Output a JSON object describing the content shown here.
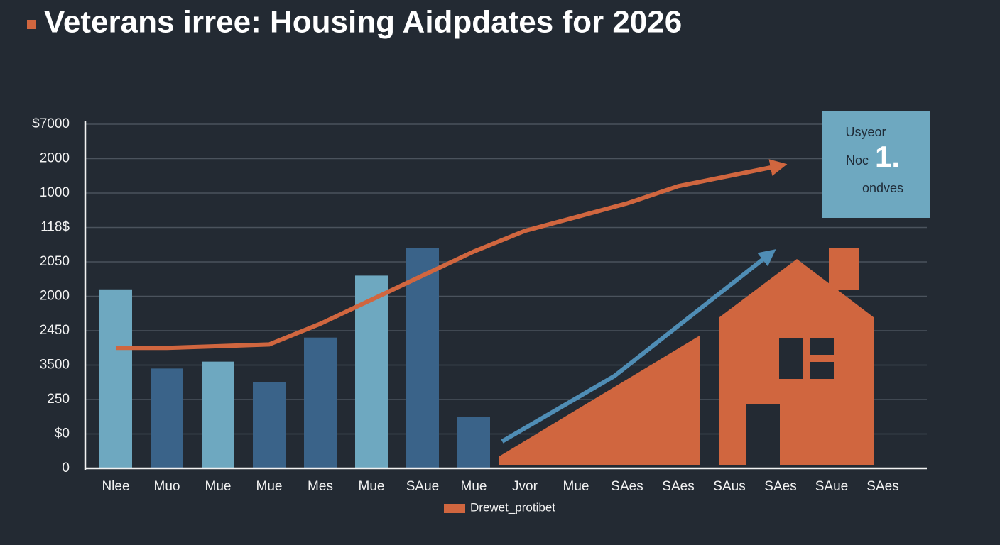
{
  "chart_data": {
    "type": "bar",
    "title": "Veterans irree: Housing Aidpdates for 2026",
    "categories": [
      "Nlee",
      "Muo",
      "Mue",
      "Mue",
      "Mes",
      "Mue",
      "SAue",
      "Mue",
      "Jvor",
      "Mue",
      "SAes",
      "SAes",
      "SAus",
      "SAes",
      "SAue",
      "SAes"
    ],
    "series": [
      {
        "type": "bar",
        "colors": [
          "#6ea8c0",
          "#3a6389",
          "#6ea8c0",
          "#3a6389",
          "#3a6389",
          "#6ea8c0",
          "#3a6389",
          "#3a6389",
          null,
          null,
          null,
          null,
          null,
          null,
          null,
          null
        ],
        "values": [
          5.2,
          2.9,
          3.1,
          2.5,
          3.8,
          5.6,
          6.4,
          1.5,
          null,
          null,
          null,
          null,
          null,
          null,
          null,
          null
        ]
      },
      {
        "type": "line",
        "name": "Drewet_protibet",
        "color": "#d0663f",
        "values": [
          3.5,
          3.5,
          3.55,
          3.6,
          4.2,
          4.9,
          5.6,
          6.3,
          6.9,
          7.3,
          7.7,
          8.2,
          8.5,
          8.8,
          null,
          null
        ]
      }
    ],
    "ylim": [
      0,
      10
    ],
    "yticks": [
      {
        "value": 0,
        "label": "0"
      },
      {
        "value": 1,
        "label": "$0"
      },
      {
        "value": 2,
        "label": "250"
      },
      {
        "value": 3,
        "label": "3500"
      },
      {
        "value": 4,
        "label": "2450"
      },
      {
        "value": 5,
        "label": "2000"
      },
      {
        "value": 6,
        "label": "2050"
      },
      {
        "value": 7,
        "label": "118$"
      },
      {
        "value": 8,
        "label": "1000"
      },
      {
        "value": 9,
        "label": "2000"
      },
      {
        "value": 10,
        "label": "$7000"
      }
    ],
    "grid": true,
    "annotations": {
      "line1": "Usyeor",
      "line2": "Noc",
      "big": "1.",
      "line3": "ondves"
    }
  }
}
